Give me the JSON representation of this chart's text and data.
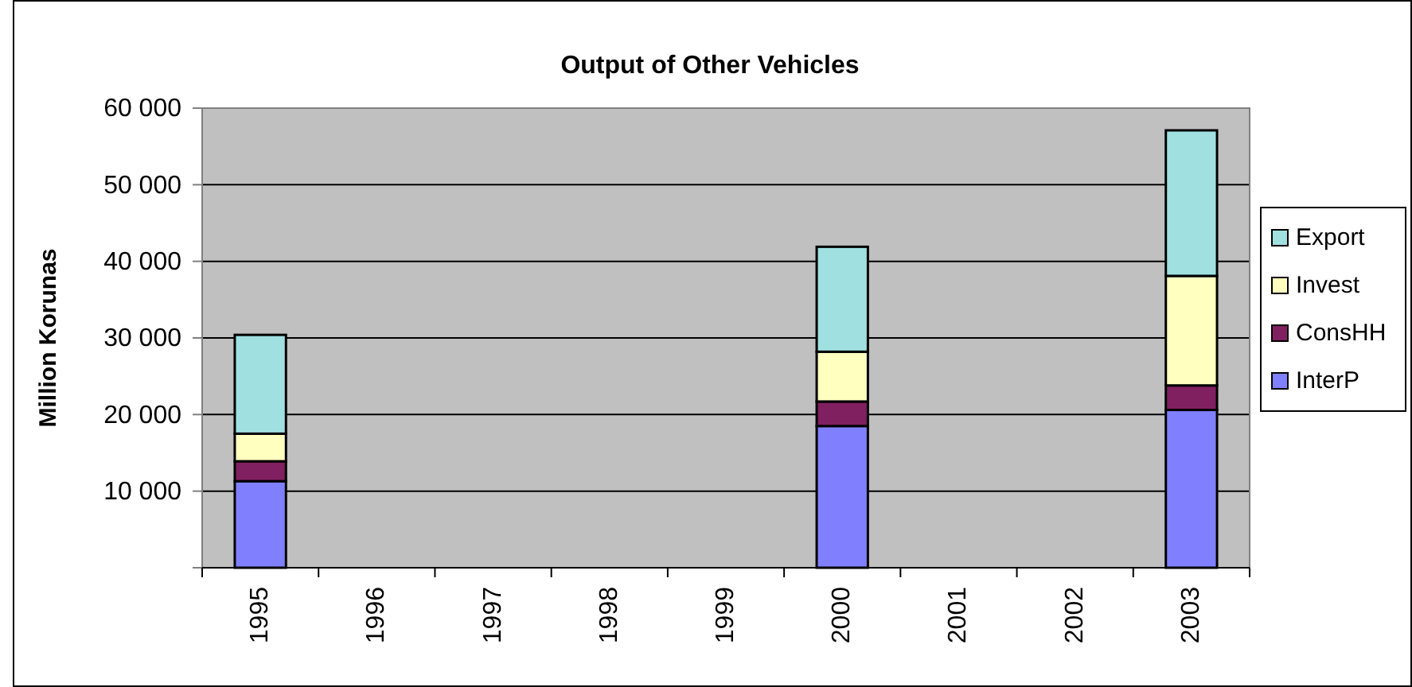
{
  "chart_data": {
    "type": "bar",
    "title": "Output of Other Vehicles",
    "ylabel": "Million Korunas",
    "categories": [
      "1995",
      "1996",
      "1997",
      "1998",
      "1999",
      "2000",
      "2001",
      "2002",
      "2003"
    ],
    "stacked": true,
    "series": [
      {
        "name": "InterP",
        "color": "#8080ff",
        "values": [
          11300,
          null,
          null,
          null,
          null,
          18500,
          null,
          null,
          20600
        ]
      },
      {
        "name": "ConsHH",
        "color": "#802060",
        "values": [
          2600,
          null,
          null,
          null,
          null,
          3200,
          null,
          null,
          3200
        ]
      },
      {
        "name": "Invest",
        "color": "#ffffc0",
        "values": [
          3600,
          null,
          null,
          null,
          null,
          6500,
          null,
          null,
          14300
        ]
      },
      {
        "name": "Export",
        "color": "#a0e0e0",
        "values": [
          12900,
          null,
          null,
          null,
          null,
          13700,
          null,
          null,
          19000
        ]
      }
    ],
    "ylim": [
      0,
      60000
    ],
    "yticks": [
      {
        "value": 0,
        "label": null
      },
      {
        "value": 10000,
        "label": "10 000"
      },
      {
        "value": 20000,
        "label": "20 000"
      },
      {
        "value": 30000,
        "label": "30 000"
      },
      {
        "value": 40000,
        "label": "40 000"
      },
      {
        "value": 50000,
        "label": "50 000"
      },
      {
        "value": 60000,
        "label": "60 000"
      }
    ],
    "grid": "y",
    "legend": "right"
  }
}
